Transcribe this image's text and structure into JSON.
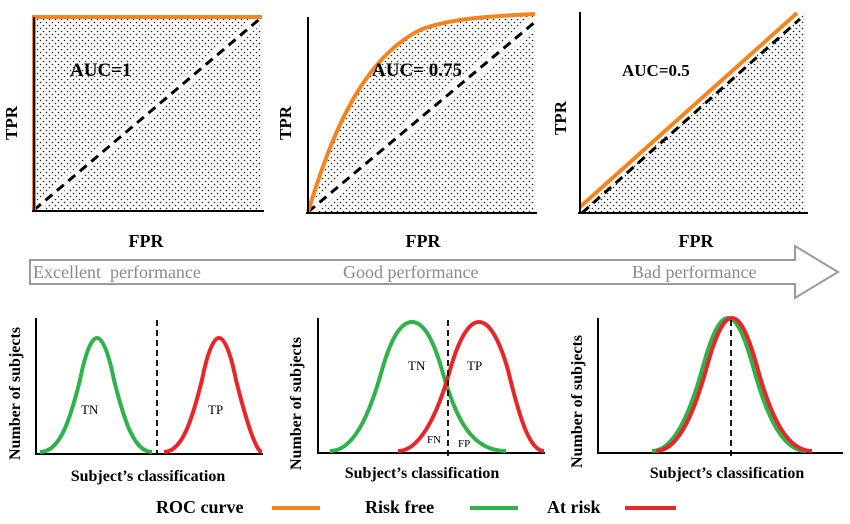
{
  "roc_panels": [
    {
      "auc_label": "AUC=1",
      "tpr_label": "TPR",
      "fpr_label": "FPR",
      "auc": 1.0
    },
    {
      "auc_label": "AUC= 0.75",
      "tpr_label": "TPR",
      "fpr_label": "FPR",
      "auc": 0.75
    },
    {
      "auc_label": "AUC=0.5",
      "tpr_label": "TPR",
      "fpr_label": "FPR",
      "auc": 0.5
    }
  ],
  "performance_arrow": {
    "labels": [
      "Excellent  performance",
      "Good performance",
      "Bad performance"
    ]
  },
  "distribution_panels": [
    {
      "ylabel": "Number of subjects",
      "xlabel": "Subject’s classification",
      "labels": {
        "tn": "TN",
        "tp": "TP"
      }
    },
    {
      "ylabel": "Number of subjects",
      "xlabel": "Subject’s classification",
      "labels": {
        "tn": "TN",
        "tp": "TP",
        "fn": "FN",
        "fp": "FP"
      }
    },
    {
      "ylabel": "Number of subjects",
      "xlabel": "Subject’s classification",
      "labels": {}
    }
  ],
  "legend": [
    {
      "label": "ROC curve",
      "color": "#f5841f"
    },
    {
      "label": "Risk free",
      "color": "#2db34a"
    },
    {
      "label": "At risk",
      "color": "#e8262a"
    }
  ],
  "colors": {
    "roc": "#f5841f",
    "risk_free": "#2db34a",
    "at_risk": "#e8262a",
    "diagonal": "#000000",
    "arrow": "#9a9a9a"
  }
}
